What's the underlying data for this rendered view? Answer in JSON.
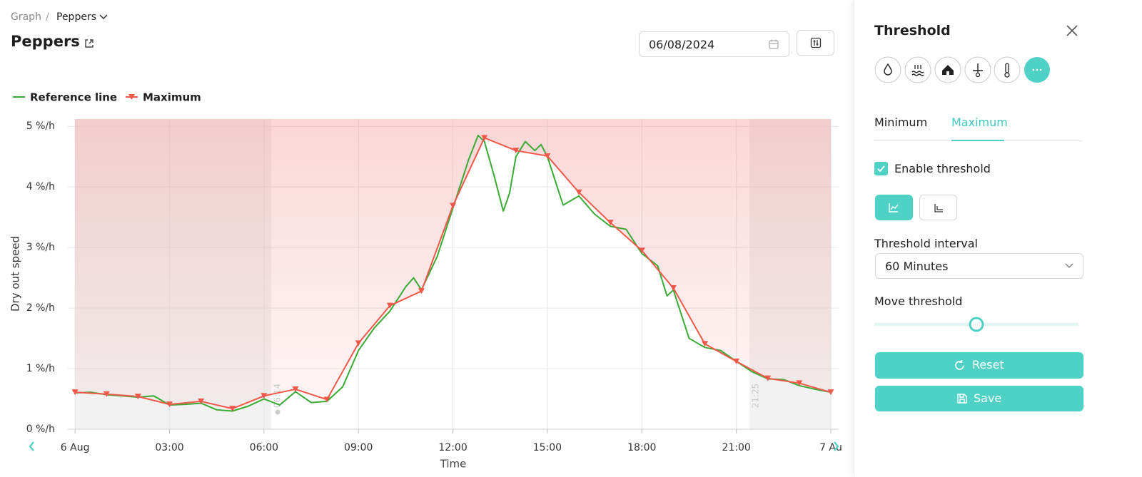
{
  "breadcrumb": {
    "root": "Graph",
    "separator": "/",
    "current": "Peppers"
  },
  "header": {
    "title": "Peppers",
    "date": "06/08/2024"
  },
  "chart_data": {
    "type": "line",
    "y_label": "Dry out speed",
    "x_label": "Time",
    "xlim": [
      -0.23,
      24.25
    ],
    "xticks": [
      {
        "value": 0,
        "label": "6 Aug"
      },
      {
        "value": 3,
        "label": "03:00"
      },
      {
        "value": 6,
        "label": "06:00"
      },
      {
        "value": 9,
        "label": "09:00"
      },
      {
        "value": 12,
        "label": "12:00"
      },
      {
        "value": 15,
        "label": "15:00"
      },
      {
        "value": 18,
        "label": "18:00"
      },
      {
        "value": 21,
        "label": "21:00"
      },
      {
        "value": 24,
        "label": "7 Au"
      }
    ],
    "ylim": [
      0,
      5.12
    ],
    "yticks": [
      {
        "value": 0,
        "label": "0 %/h"
      },
      {
        "value": 1,
        "label": "1 %/h"
      },
      {
        "value": 2,
        "label": "2 %/h"
      },
      {
        "value": 3,
        "label": "3 %/h"
      },
      {
        "value": 4,
        "label": "4 %/h"
      },
      {
        "value": 5,
        "label": "5 %/h"
      }
    ],
    "grid": true,
    "sunrise": {
      "value": 6.23,
      "label": "06:14"
    },
    "sunset": {
      "value": 21.42,
      "label": "21:25"
    },
    "series": [
      {
        "name": "Reference line",
        "color": "#3aaa35",
        "x": [
          0,
          0.5,
          1,
          1.5,
          2,
          2.5,
          3,
          3.5,
          4,
          4.5,
          5,
          5.5,
          6,
          6.5,
          7,
          7.5,
          8,
          8.5,
          9,
          9.5,
          10,
          10.5,
          10.75,
          11,
          11.5,
          12,
          12.5,
          12.8,
          13,
          13.3,
          13.6,
          13.8,
          14,
          14.3,
          14.6,
          14.8,
          15,
          15.5,
          16,
          16.5,
          17,
          17.5,
          18,
          18.5,
          18.8,
          19,
          19.5,
          20,
          20.5,
          21,
          21.5,
          22,
          22.5,
          23,
          23.5,
          24
        ],
        "values": [
          0.6,
          0.61,
          0.57,
          0.55,
          0.53,
          0.55,
          0.4,
          0.41,
          0.43,
          0.32,
          0.3,
          0.38,
          0.5,
          0.4,
          0.62,
          0.44,
          0.46,
          0.7,
          1.3,
          1.67,
          1.95,
          2.35,
          2.5,
          2.3,
          2.85,
          3.65,
          4.45,
          4.85,
          4.75,
          4.2,
          3.6,
          3.9,
          4.5,
          4.75,
          4.6,
          4.7,
          4.5,
          3.7,
          3.85,
          3.55,
          3.35,
          3.3,
          2.9,
          2.7,
          2.2,
          2.3,
          1.5,
          1.35,
          1.3,
          1.12,
          0.95,
          0.83,
          0.82,
          0.72,
          0.66,
          0.61
        ]
      },
      {
        "name": "Maximum",
        "color": "#f0584a",
        "marker": "triangle-down",
        "x": [
          0,
          1,
          2,
          3,
          4,
          5,
          6,
          7,
          8,
          9,
          10,
          11,
          12,
          13,
          14,
          15,
          16,
          17,
          18,
          19,
          20,
          21,
          22,
          23,
          24
        ],
        "values": [
          0.61,
          0.58,
          0.54,
          0.41,
          0.46,
          0.34,
          0.55,
          0.66,
          0.49,
          1.42,
          2.04,
          2.28,
          3.69,
          4.81,
          4.6,
          4.51,
          3.91,
          3.41,
          2.95,
          2.33,
          1.41,
          1.12,
          0.84,
          0.76,
          0.61
        ]
      }
    ]
  },
  "panel": {
    "title": "Threshold",
    "tabs": [
      "Minimum",
      "Maximum"
    ],
    "enable_label": "Enable threshold",
    "interval_label": "Threshold interval",
    "interval_value": "60 Minutes",
    "move_label": "Move threshold",
    "buttons": [
      "Reset",
      "Save"
    ]
  }
}
